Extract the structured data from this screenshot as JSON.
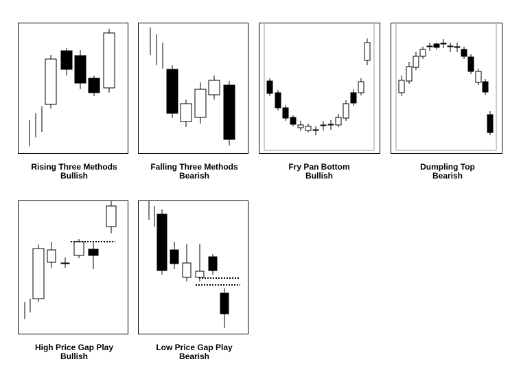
{
  "panels": [
    {
      "title": "Rising Three Methods",
      "subtitle": "Bullish"
    },
    {
      "title": "Falling Three Methods",
      "subtitle": "Bearish"
    },
    {
      "title": "Fry Pan Bottom",
      "subtitle": "Bullish"
    },
    {
      "title": "Dumpling Top",
      "subtitle": "Bearish"
    },
    {
      "title": "High Price Gap Play",
      "subtitle": "Bullish"
    },
    {
      "title": "Low Price Gap Play",
      "subtitle": "Bearish"
    }
  ]
}
